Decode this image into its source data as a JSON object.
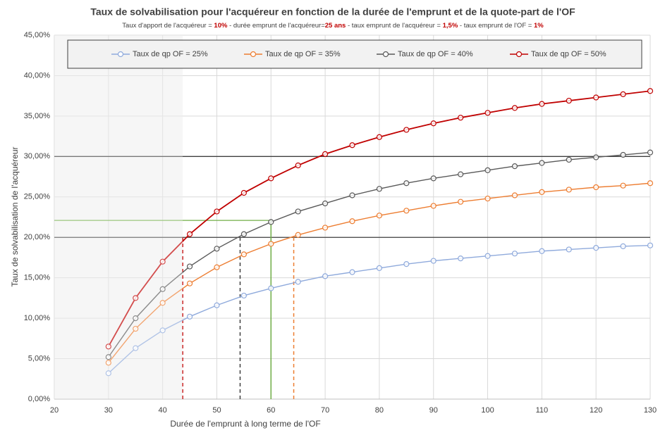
{
  "chart_data": {
    "type": "line",
    "title": "Taux de solvabilisation pour l'acquéreur en fonction de la durée de l'emprunt et de la quote-part de l'OF",
    "subtitle_parts": [
      {
        "text": "Taux d'apport de l'acquéreur = "
      },
      {
        "text": "10%",
        "highlight": true
      },
      {
        "text": " - durée emprunt de l'acquéreur="
      },
      {
        "text": "25 ans",
        "highlight": true
      },
      {
        "text": " - taux emprunt de l'acquéreur = "
      },
      {
        "text": "1,5%",
        "highlight": true
      },
      {
        "text": " - taux emprunt de l'OF = "
      },
      {
        "text": "1%",
        "highlight": true
      }
    ],
    "x_label": "Durée de l'emprunt à long terme de l'OF",
    "y_label": "Taux de solvabilisation de l'acquéreur",
    "x": [
      30,
      35,
      40,
      45,
      50,
      55,
      60,
      65,
      70,
      75,
      80,
      85,
      90,
      95,
      100,
      105,
      110,
      115,
      120,
      125,
      130
    ],
    "series": [
      {
        "name": "Taux de qp OF = 25%",
        "color": "#8faadc",
        "values": [
          3.2,
          6.3,
          8.5,
          10.2,
          11.6,
          12.8,
          13.7,
          14.5,
          15.2,
          15.7,
          16.2,
          16.7,
          17.1,
          17.4,
          17.7,
          18.0,
          18.3,
          18.5,
          18.7,
          18.9,
          19.0
        ]
      },
      {
        "name": "Taux de qp OF = 35%",
        "color": "#ed7d31",
        "values": [
          4.5,
          8.7,
          11.9,
          14.3,
          16.3,
          17.9,
          19.2,
          20.3,
          21.2,
          22.0,
          22.7,
          23.3,
          23.9,
          24.4,
          24.8,
          25.2,
          25.6,
          25.9,
          26.2,
          26.4,
          26.7
        ]
      },
      {
        "name": "Taux de qp OF = 40%",
        "color": "#595959",
        "values": [
          5.2,
          10.0,
          13.6,
          16.4,
          18.6,
          20.4,
          21.9,
          23.2,
          24.2,
          25.2,
          26.0,
          26.7,
          27.3,
          27.8,
          28.3,
          28.8,
          29.2,
          29.6,
          29.9,
          30.2,
          30.5
        ]
      },
      {
        "name": "Taux de qp OF = 50%",
        "color": "#c00000",
        "values": [
          6.5,
          12.5,
          17.0,
          20.4,
          23.2,
          25.5,
          27.3,
          28.9,
          30.3,
          31.4,
          32.4,
          33.3,
          34.1,
          34.8,
          35.4,
          36.0,
          36.5,
          36.9,
          37.3,
          37.7,
          38.1
        ]
      }
    ],
    "xlim": [
      20,
      130
    ],
    "xticks": [
      20,
      30,
      40,
      50,
      60,
      70,
      80,
      90,
      100,
      110,
      120,
      130
    ],
    "ylim": [
      0,
      45
    ],
    "yticks": [
      {
        "value": 0,
        "label": "0,00%"
      },
      {
        "value": 5,
        "label": "5,00%"
      },
      {
        "value": 10,
        "label": "10,00%"
      },
      {
        "value": 15,
        "label": "15,00%"
      },
      {
        "value": 20,
        "label": "20,00%"
      },
      {
        "value": 25,
        "label": "25,00%"
      },
      {
        "value": 30,
        "label": "30,00%"
      },
      {
        "value": 35,
        "label": "35,00%"
      },
      {
        "value": 40,
        "label": "40,00%"
      },
      {
        "value": 45,
        "label": "45,00%"
      }
    ],
    "grid": true,
    "shade_to": 43.7,
    "hlines": [
      {
        "y": 20,
        "color": "#404040"
      },
      {
        "y": 30,
        "color": "#404040"
      },
      {
        "y": 22.1,
        "x_to": 60,
        "color": "#70ad47"
      }
    ],
    "vlines": [
      {
        "x": 43.7,
        "y_to": 20,
        "color": "#c00000",
        "dashed": true
      },
      {
        "x": 54.3,
        "y_to": 20,
        "color": "#404040",
        "dashed": true
      },
      {
        "x": 60,
        "y_to": 22.1,
        "color": "#70ad47",
        "dashed": false
      },
      {
        "x": 64.2,
        "y_to": 20,
        "color": "#ed7d31",
        "dashed": true
      }
    ]
  }
}
